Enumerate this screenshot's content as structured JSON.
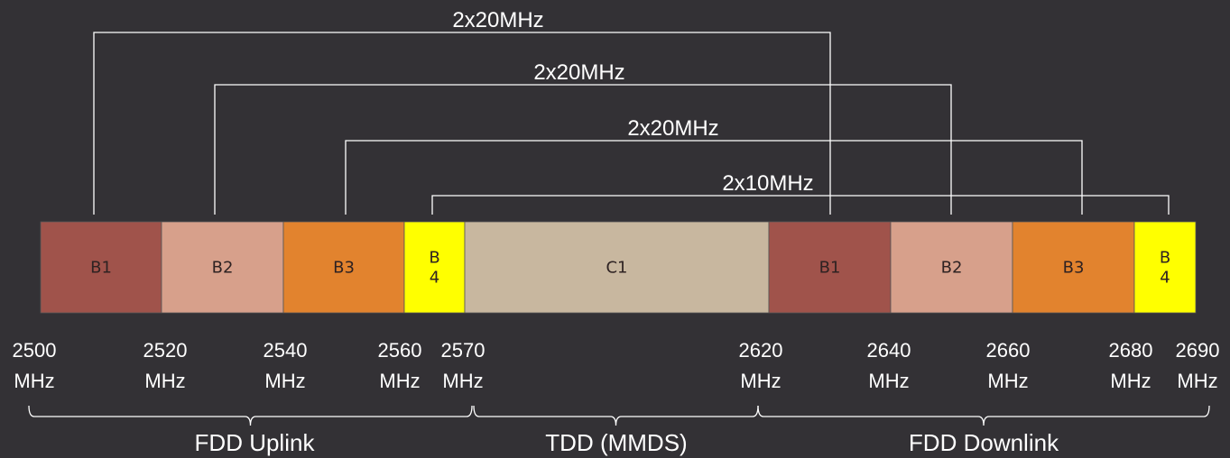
{
  "blocks": [
    {
      "label": "B1",
      "color": "#a0534b"
    },
    {
      "label": "B2",
      "color": "#d7a08b"
    },
    {
      "label": "B3",
      "color": "#e2832e"
    },
    {
      "label": "B\n4",
      "color": "#ffff00"
    },
    {
      "label": "C1",
      "color": "#c8b79f"
    },
    {
      "label": "B1",
      "color": "#a0534b"
    },
    {
      "label": "B2",
      "color": "#d7a08b"
    },
    {
      "label": "B3",
      "color": "#e2832e"
    },
    {
      "label": "B\n4",
      "color": "#ffff00"
    }
  ],
  "pairings": [
    {
      "label": "2x20MHz",
      "from": "B1",
      "to": "B1"
    },
    {
      "label": "2x20MHz",
      "from": "B2",
      "to": "B2"
    },
    {
      "label": "2x20MHz",
      "from": "B3",
      "to": "B3"
    },
    {
      "label": "2x10MHz",
      "from": "B4",
      "to": "B4"
    }
  ],
  "frequencies": [
    {
      "value": "2500",
      "unit": "MHz"
    },
    {
      "value": "2520",
      "unit": "MHz"
    },
    {
      "value": "2540",
      "unit": "MHz"
    },
    {
      "value": "2560",
      "unit": "MHz"
    },
    {
      "value": "2570",
      "unit": "MHz"
    },
    {
      "value": "2620",
      "unit": "MHz"
    },
    {
      "value": "2640",
      "unit": "MHz"
    },
    {
      "value": "2660",
      "unit": "MHz"
    },
    {
      "value": "2680",
      "unit": "MHz"
    },
    {
      "value": "2690",
      "unit": "MHz"
    }
  ],
  "segments": [
    {
      "label": "FDD Uplink"
    },
    {
      "label": "TDD (MMDS)"
    },
    {
      "label": "FDD Downlink"
    }
  ],
  "colors": {
    "background": "#333135",
    "lines": "#ffffff",
    "block_border": "#555555"
  }
}
